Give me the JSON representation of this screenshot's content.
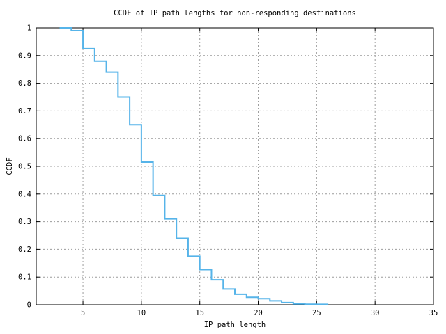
{
  "window": {
    "background": "#ffffff"
  },
  "chart_data": {
    "type": "line",
    "line_style": "step-post",
    "title": "CCDF of IP path lengths for non-responding destinations",
    "xlabel": "IP path length",
    "ylabel": "CCDF",
    "xlim": [
      1,
      35
    ],
    "ylim": [
      0,
      1
    ],
    "xticks": [
      5,
      10,
      15,
      20,
      25,
      30,
      35
    ],
    "xtick_labels": [
      "5",
      "10",
      "15",
      "20",
      "25",
      "30",
      "35"
    ],
    "yticks": [
      0,
      0.1,
      0.2,
      0.3,
      0.4,
      0.5,
      0.6,
      0.7,
      0.8,
      0.9,
      1
    ],
    "ytick_labels": [
      "0",
      "0.1",
      "0.2",
      "0.3",
      "0.4",
      "0.5",
      "0.6",
      "0.7",
      "0.8",
      "0.9",
      "1"
    ],
    "grid": true,
    "legend": "none",
    "colors": {
      "line": "#56b4e9",
      "grid": "#9c9c9c",
      "axis": "#000000",
      "text": "#000000",
      "background": "#ffffff"
    },
    "series": [
      {
        "name": "CCDF of IP path lengths",
        "x": [
          3,
          4,
          5,
          6,
          7,
          8,
          9,
          10,
          11,
          12,
          13,
          14,
          15,
          16,
          17,
          18,
          19,
          20,
          21,
          22,
          23,
          24,
          25
        ],
        "y": [
          1.0,
          0.99,
          0.925,
          0.88,
          0.84,
          0.75,
          0.65,
          0.515,
          0.395,
          0.31,
          0.24,
          0.175,
          0.127,
          0.09,
          0.057,
          0.038,
          0.027,
          0.022,
          0.014,
          0.008,
          0.003,
          0.002,
          0.0015
        ],
        "end_x": 26
      }
    ]
  }
}
